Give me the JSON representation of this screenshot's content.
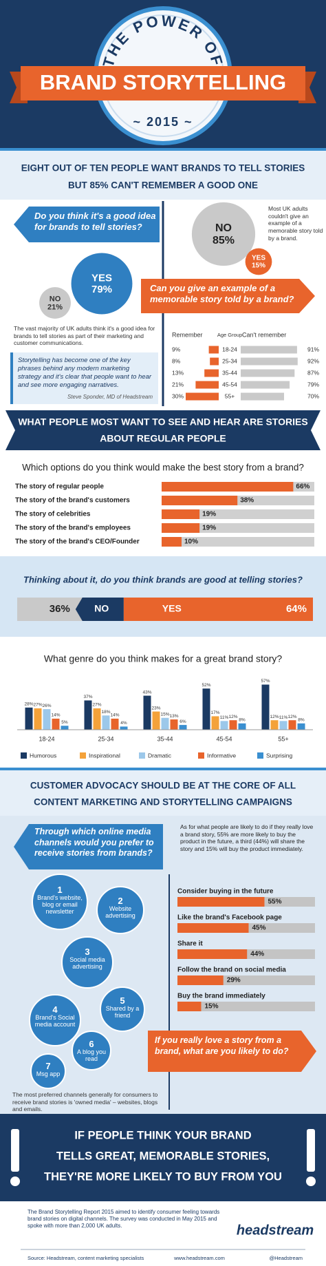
{
  "header": {
    "kicker": "THE POWER OF",
    "title": "BRAND STORYTELLING",
    "year": "~ 2015 ~"
  },
  "intro": {
    "lines": [
      "EIGHT OUT OF TEN PEOPLE WANT BRANDS TO TELL STORIES",
      "BUT 85% CAN'T REMEMBER A GOOD ONE"
    ]
  },
  "good_idea": {
    "question": "Do you think it's a good idea for brands to tell stories?",
    "answers": [
      {
        "label": "YES",
        "value": 79,
        "value_label": "79%",
        "color": "#2f7fc1"
      },
      {
        "label": "NO",
        "value": 21,
        "value_label": "21%",
        "color": "#c9c9c9"
      }
    ],
    "note": "The vast majority of UK adults think it's a good idea for brands to tell stories as part of their marketing and customer communications.",
    "quote": "Storytelling has become one of the key phrases behind any modern marketing strategy and it's clear that people want to hear and see more engaging narratives.",
    "quote_author": "Steve Sponder, MD of Headstream"
  },
  "example": {
    "question": "Can you give an example of a memorable story told by a brand?",
    "answers": [
      {
        "label": "NO",
        "value": 85,
        "value_label": "85%",
        "color": "#c9c9c9"
      },
      {
        "label": "YES",
        "value": 15,
        "value_label": "15%",
        "color": "#e8642c"
      }
    ],
    "note": "Most UK adults couldn't give an example of a memorable story told by a brand.",
    "table": {
      "headers": [
        "Remember",
        "Age Group",
        "Can't remember"
      ],
      "rows": [
        {
          "age": "18-24",
          "remember": 9,
          "remember_label": "9%",
          "cant": 91,
          "cant_label": "91%"
        },
        {
          "age": "25-34",
          "remember": 8,
          "remember_label": "8%",
          "cant": 92,
          "cant_label": "92%"
        },
        {
          "age": "35-44",
          "remember": 13,
          "remember_label": "13%",
          "cant": 87,
          "cant_label": "87%"
        },
        {
          "age": "45-54",
          "remember": 21,
          "remember_label": "21%",
          "cant": 79,
          "cant_label": "79%"
        },
        {
          "age": "55+",
          "remember": 30,
          "remember_label": "30%",
          "cant": 70,
          "cant_label": "70%"
        }
      ]
    }
  },
  "regular": {
    "lines": [
      "WHAT PEOPLE MOST WANT TO SEE AND HEAR ARE STORIES",
      "ABOUT REGULAR PEOPLE"
    ]
  },
  "options": {
    "question": "Which options do you think would make the best story from a brand?",
    "categories": [
      "The story of regular people",
      "The story of the brand's customers",
      "The story of celebrities",
      "The story of the brand's employees",
      "The story of the brand's CEO/Founder"
    ],
    "values": [
      66,
      38,
      19,
      19,
      10
    ],
    "value_labels": [
      "66%",
      "38%",
      "19%",
      "19%",
      "10%"
    ],
    "color": "#e8642c"
  },
  "good_at": {
    "question": "Thinking about it, do you think brands are good at telling stories?",
    "no": {
      "label": "NO",
      "value": 36,
      "value_label": "36%"
    },
    "yes": {
      "label": "YES",
      "value": 64,
      "value_label": "64%"
    }
  },
  "genre": {
    "type": "bar",
    "title": "What genre do you think makes for a great brand story?",
    "categories": [
      "18-24",
      "25-34",
      "35-44",
      "45-54",
      "55+"
    ],
    "series": [
      {
        "name": "Humorous",
        "color": "#1b3a63",
        "values": [
          28,
          37,
          43,
          52,
          57
        ],
        "value_labels": [
          "28%",
          "37%",
          "43%",
          "52%",
          "57%"
        ]
      },
      {
        "name": "Inspirational",
        "color": "#f4a23a",
        "values": [
          27,
          27,
          23,
          17,
          12
        ],
        "value_labels": [
          "27%",
          "27%",
          "23%",
          "17%",
          "12%"
        ]
      },
      {
        "name": "Dramatic",
        "color": "#9cc8ea",
        "values": [
          26,
          18,
          15,
          11,
          11
        ],
        "value_labels": [
          "26%",
          "18%",
          "15%",
          "11%",
          "11%"
        ]
      },
      {
        "name": "Informative",
        "color": "#e8642c",
        "values": [
          14,
          14,
          13,
          12,
          12
        ],
        "value_labels": [
          "14%",
          "14%",
          "13%",
          "12%",
          "12%"
        ]
      },
      {
        "name": "Surprising",
        "color": "#3a8fd0",
        "values": [
          5,
          4,
          6,
          8,
          8
        ],
        "value_labels": [
          "5%",
          "4%",
          "6%",
          "8%",
          "8%"
        ]
      }
    ]
  },
  "advocacy": {
    "lines": [
      "CUSTOMER ADVOCACY SHOULD BE AT THE CORE OF ALL",
      "CONTENT MARKETING AND STORYTELLING CAMPAIGNS"
    ]
  },
  "channels": {
    "question": "Through which online media channels would you prefer to receive stories from brands?",
    "items": [
      {
        "rank": 1,
        "label": "Brand's website, blog or email newsletter"
      },
      {
        "rank": 2,
        "label": "Website advertising"
      },
      {
        "rank": 3,
        "label": "Social media advertising"
      },
      {
        "rank": 4,
        "label": "Brand's Social media account"
      },
      {
        "rank": 5,
        "label": "Shared by a friend"
      },
      {
        "rank": 6,
        "label": "A blog you read"
      },
      {
        "rank": 7,
        "label": "Msg app"
      }
    ],
    "note": "The most preferred channels generally for consumers to receive brand stories is 'owned media' – websites, blogs and emails."
  },
  "actions": {
    "intro": "As for what people are likely to do if they really love a brand story, 55% are more likely to buy the product in the future, a third (44%) will share the story and 15% will buy the product immediately.",
    "categories": [
      "Consider buying in the future",
      "Like the brand's Facebook page",
      "Share it",
      "Follow the brand on social media",
      "Buy the brand immediately"
    ],
    "values": [
      55,
      45,
      44,
      29,
      15
    ],
    "value_labels": [
      "55%",
      "45%",
      "44%",
      "29%",
      "15%"
    ],
    "question": "If you really love a story from a brand, what are you likely to do?"
  },
  "conclusion": {
    "lines": [
      "IF PEOPLE THINK YOUR BRAND",
      "TELLS GREAT, MEMORABLE STORIES,",
      "THEY'RE MORE LIKELY TO BUY FROM YOU"
    ]
  },
  "footer": {
    "about": "The Brand Storytelling Report 2015 aimed to identify consumer feeling towards brand stories on digital channels. The survey was conducted in May 2015 and spoke with more than 2,000 UK adults.",
    "logo": "headstream",
    "source": "Source: Headstream, content marketing specialists",
    "url": "www.headstream.com",
    "handle": "@Headstream"
  }
}
